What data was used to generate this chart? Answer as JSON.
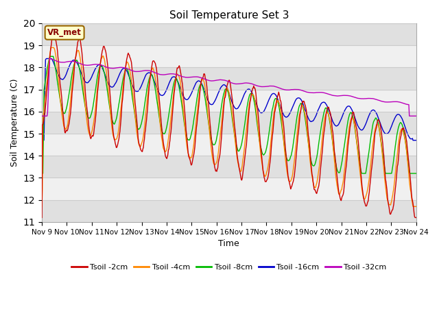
{
  "title": "Soil Temperature Set 3",
  "xlabel": "Time",
  "ylabel": "Soil Temperature (C)",
  "ylim": [
    11.0,
    20.0
  ],
  "yticks": [
    11.0,
    12.0,
    13.0,
    14.0,
    15.0,
    16.0,
    17.0,
    18.0,
    19.0,
    20.0
  ],
  "xtick_labels": [
    "Nov 9",
    "Nov 10",
    "Nov 11",
    "Nov 12",
    "Nov 13",
    "Nov 14",
    "Nov 15",
    "Nov 16",
    "Nov 17",
    "Nov 18",
    "Nov 19",
    "Nov 20",
    "Nov 21",
    "Nov 22",
    "Nov 23",
    "Nov 24"
  ],
  "series_colors": [
    "#cc0000",
    "#ff8800",
    "#00bb00",
    "#0000cc",
    "#bb00bb"
  ],
  "series_labels": [
    "Tsoil -2cm",
    "Tsoil -4cm",
    "Tsoil -8cm",
    "Tsoil -16cm",
    "Tsoil -32cm"
  ],
  "legend_label": "VR_met",
  "legend_box_facecolor": "#ffffcc",
  "legend_box_edgecolor": "#996600",
  "fig_facecolor": "#ffffff",
  "ax_facecolor": "#ffffff",
  "band_light": "#f0f0f0",
  "band_dark": "#e0e0e0",
  "grid_color": "#cccccc"
}
